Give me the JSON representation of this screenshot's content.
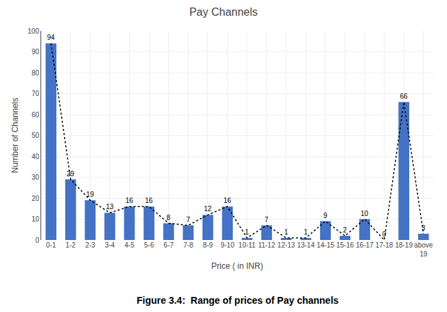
{
  "chart_data": {
    "type": "bar",
    "title": "Pay Channels",
    "xlabel": "Price ( in INR)",
    "ylabel": "Number of Channels",
    "caption": "Figure 3.4:  Range of prices of Pay channels",
    "categories": [
      "0-1",
      "1-2",
      "2-3",
      "3-4",
      "4-5",
      "5-6",
      "6-7",
      "7-8",
      "8-9",
      "9-10",
      "10-11",
      "11-12",
      "12-13",
      "13-14",
      "14-15",
      "15-16",
      "16-17",
      "17-18",
      "18-19",
      "above\n19"
    ],
    "series": [
      {
        "type": "bar",
        "color": "#4472C4",
        "data_labels": true,
        "values": [
          94,
          29,
          19,
          13,
          16,
          16,
          8,
          7,
          12,
          16,
          1,
          7,
          1,
          1,
          9,
          2,
          10,
          0,
          66,
          3
        ]
      },
      {
        "type": "line",
        "color": "#000000",
        "line_style": "dotted",
        "values": [
          94,
          29,
          19,
          13,
          16,
          16,
          8,
          7,
          12,
          16,
          1,
          7,
          1,
          1,
          9,
          2,
          10,
          0,
          66,
          3
        ]
      }
    ],
    "ylim": [
      0,
      100
    ],
    "yticks": [
      0,
      10,
      20,
      30,
      40,
      50,
      60,
      70,
      80,
      90,
      100
    ],
    "grid": true
  }
}
